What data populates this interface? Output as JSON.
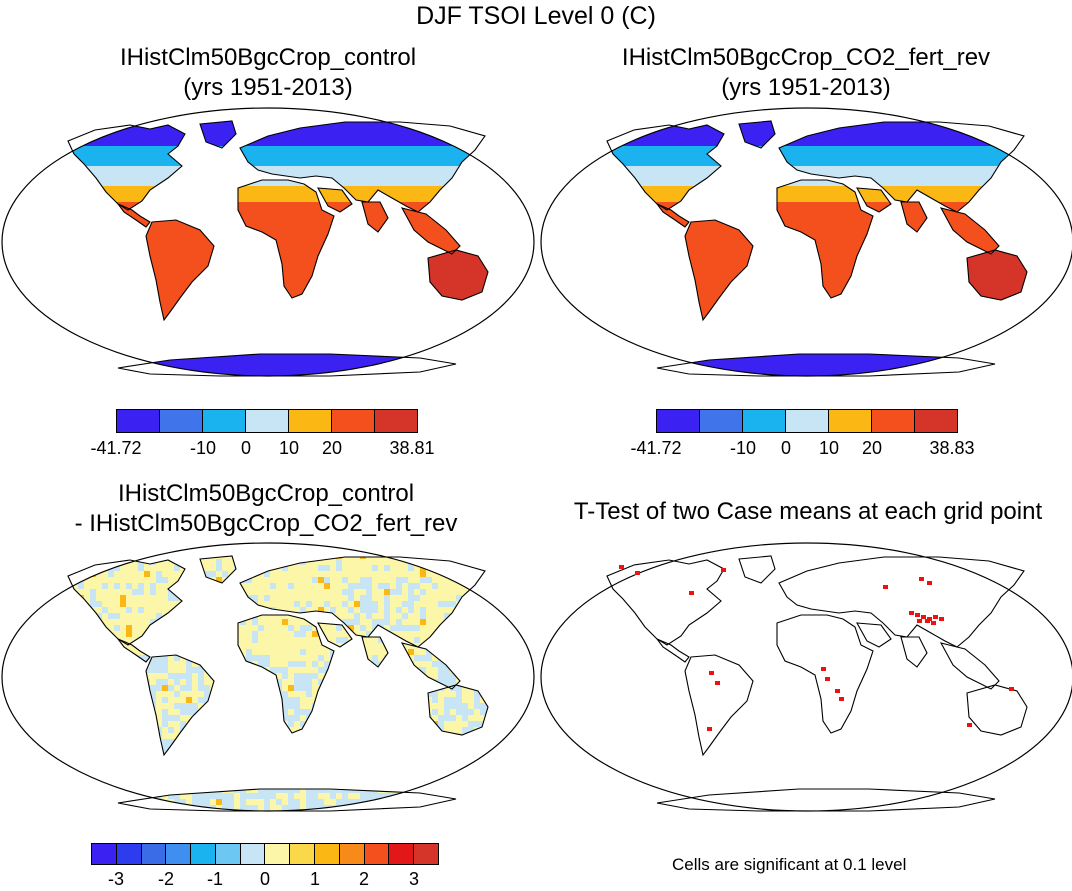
{
  "title": "DJF TSOI Level 0 (C)",
  "panels": {
    "top_left": {
      "title_line1": "IHistClm50BgcCrop_control",
      "title_line2": "(yrs 1951-2013)"
    },
    "top_right": {
      "title_line1": "IHistClm50BgcCrop_CO2_fert_rev",
      "title_line2": "(yrs 1951-2013)"
    },
    "bottom_left": {
      "title_line1": "IHistClm50BgcCrop_control",
      "title_line2": "- IHistClm50BgcCrop_CO2_fert_rev"
    },
    "bottom_right": {
      "title_line1": "T-Test of two Case means at each grid point",
      "note": "Cells are significant at 0.1 level"
    }
  },
  "colorbars": {
    "top_left": {
      "colors": [
        "#3b22f2",
        "#3f74ea",
        "#1ab3f0",
        "#c7e5f5",
        "#fbb815",
        "#f4501e",
        "#d53429"
      ],
      "labels": [
        "-41.72",
        "-10",
        "0",
        "10",
        "20",
        "38.81"
      ]
    },
    "top_right": {
      "colors": [
        "#3b22f2",
        "#3f74ea",
        "#1ab3f0",
        "#c7e5f5",
        "#fbb815",
        "#f4501e",
        "#d53429"
      ],
      "labels": [
        "-41.72",
        "-10",
        "0",
        "10",
        "20",
        "38.83"
      ]
    },
    "bottom_left": {
      "colors": [
        "#3b22f2",
        "#2e3cf0",
        "#3a6ce8",
        "#3f8ff0",
        "#1ab3f0",
        "#6cc8f2",
        "#c7e5f5",
        "#fbf6a8",
        "#fbd84a",
        "#fbb815",
        "#f88a1a",
        "#f4501e",
        "#e21818",
        "#d53429"
      ],
      "labels": [
        "-3",
        "-2",
        "-1",
        "0",
        "1",
        "2",
        "3"
      ]
    }
  },
  "colors": {
    "cold": "#3b22f2",
    "cool": "#1ab3f0",
    "mild": "#c7e5f5",
    "warm": "#fbb815",
    "hot": "#f4501e",
    "hottest": "#d53429",
    "diff_pos": "#fbf6a8",
    "diff_neg": "#c7e5f5",
    "significant": "#ee1111"
  }
}
